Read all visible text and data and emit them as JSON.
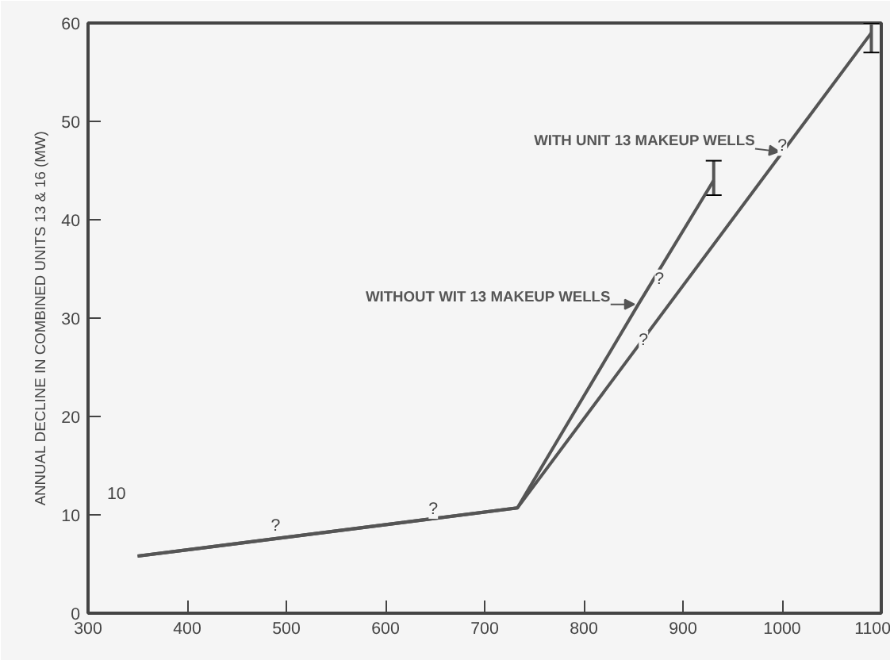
{
  "chart_data": {
    "type": "line",
    "ylabel": "ANNUAL DECLINE IN COMBINED UNITS 13 & 16 (MW)",
    "series": [
      {
        "name": "WITH UNIT 13 MAKEUP WELLS",
        "color": "#555555",
        "x": [
          350,
          733,
          1090
        ],
        "values": [
          5.8,
          10.7,
          59
        ],
        "errors": [
          null,
          null,
          [
            57,
            60
          ]
        ]
      },
      {
        "name": "WITHOUT WIT 13 MAKEUP WELLS",
        "color": "#555555",
        "x": [
          350,
          733,
          855,
          931
        ],
        "values": [
          5.8,
          10.7,
          31.4,
          44
        ],
        "errors": [
          null,
          null,
          null,
          [
            42.5,
            46
          ]
        ]
      }
    ],
    "xlim": [
      300,
      1100
    ],
    "xticks": [
      300,
      400,
      500,
      600,
      700,
      800,
      900,
      1000,
      1100
    ],
    "ylim": [
      0,
      60
    ],
    "yticks": [
      0,
      10,
      20,
      30,
      40,
      50,
      60
    ],
    "annotations": [
      {
        "text": "?",
        "x": 478,
        "y": 7.9
      },
      {
        "text": "?",
        "x": 637,
        "y": 9.6
      },
      {
        "text": "?",
        "x": 849,
        "y": 26.8
      },
      {
        "text": "?",
        "x": 865,
        "y": 33
      },
      {
        "text": "?",
        "x": 989,
        "y": 46.5
      },
      "10"
    ],
    "grid": false,
    "legend": "center",
    "marker": "none",
    "line_style": "solid"
  }
}
